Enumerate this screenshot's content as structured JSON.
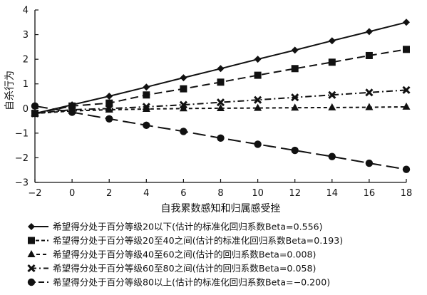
{
  "chart_data": {
    "type": "line",
    "xlabel": "自我累数感知和归属感受挫",
    "ylabel": "自杀行为",
    "xlim": [
      -2,
      18
    ],
    "ylim": [
      -3,
      4
    ],
    "xticks": [
      -2,
      0,
      2,
      4,
      6,
      8,
      10,
      12,
      14,
      16,
      18
    ],
    "yticks": [
      -3,
      -2,
      -1,
      0,
      1,
      2,
      3,
      4
    ],
    "grid": false,
    "legend_position": "bottom",
    "x": [
      -2,
      0,
      2,
      4,
      6,
      8,
      10,
      12,
      14,
      16,
      18
    ],
    "series": [
      {
        "name": "希望得分处于百分等级20以下(估计的标准化回归系数Beta=0.556)",
        "marker": "diamond",
        "dash": "solid",
        "values": [
          -0.2,
          0.15,
          0.5,
          0.87,
          1.25,
          1.62,
          2.0,
          2.37,
          2.75,
          3.12,
          3.5
        ]
      },
      {
        "name": "希望得分处于百分等级20至40之间(估计的标准化回归系数Beta=0.193)",
        "marker": "square",
        "dash": "dashed",
        "values": [
          -0.2,
          0.1,
          0.22,
          0.55,
          0.8,
          1.07,
          1.35,
          1.62,
          1.88,
          2.15,
          2.4
        ]
      },
      {
        "name": "希望得分处于百分等级40至60之间(估计的回归系数Beta=0.008)",
        "marker": "triangle",
        "dash": "short-dash",
        "values": [
          -0.2,
          -0.1,
          -0.05,
          -0.02,
          0.0,
          0.01,
          0.02,
          0.03,
          0.04,
          0.05,
          0.07
        ]
      },
      {
        "name": "希望得分处于百分等级60至80之间(估计的回归系数Beta=0.058)",
        "marker": "x",
        "dash": "dash-dot",
        "values": [
          -0.2,
          -0.05,
          0.0,
          0.07,
          0.15,
          0.25,
          0.35,
          0.45,
          0.55,
          0.65,
          0.75
        ]
      },
      {
        "name": "希望得分处于百分等级80以上(估计的标准化回归系数Beta=−0.200)",
        "marker": "circle",
        "dash": "long-dash",
        "values": [
          0.1,
          -0.15,
          -0.42,
          -0.68,
          -0.93,
          -1.2,
          -1.45,
          -1.7,
          -1.95,
          -2.22,
          -2.47
        ]
      }
    ]
  }
}
